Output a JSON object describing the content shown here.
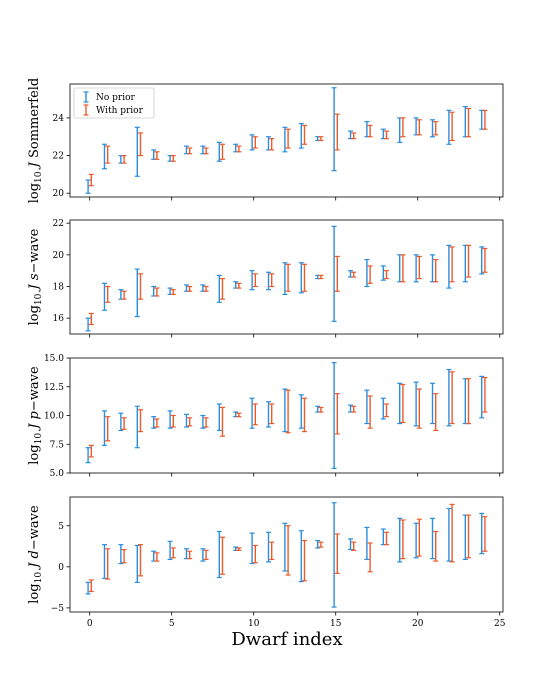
{
  "colors": {
    "no_prior": "#2a8fdd",
    "with_prior": "#ec5a2a"
  },
  "chart_data": [
    {
      "type": "errorbar",
      "ylabel": "log10 J Sommerfeld",
      "ylim": [
        19.8,
        25.8
      ],
      "yticks": [
        20,
        22,
        24
      ],
      "xlim": [
        -1.2,
        25.2
      ],
      "legend": {
        "placement": "top-left",
        "entries": [
          "No prior",
          "With prior"
        ]
      },
      "series": [
        {
          "name": "No prior",
          "intervals": [
            [
              20.0,
              20.7
            ],
            [
              21.3,
              22.6
            ],
            [
              21.6,
              22.0
            ],
            [
              20.9,
              23.5
            ],
            [
              21.8,
              22.3
            ],
            [
              21.7,
              22.0
            ],
            [
              22.1,
              22.5
            ],
            [
              22.1,
              22.5
            ],
            [
              21.7,
              22.7
            ],
            [
              22.2,
              22.6
            ],
            [
              22.3,
              23.1
            ],
            [
              22.3,
              23.0
            ],
            [
              22.2,
              23.5
            ],
            [
              22.4,
              23.7
            ],
            [
              22.8,
              23.0
            ],
            [
              21.2,
              25.6
            ],
            [
              22.9,
              23.3
            ],
            [
              23.0,
              23.8
            ],
            [
              22.9,
              23.4
            ],
            [
              22.7,
              24.0
            ],
            [
              23.1,
              24.0
            ],
            [
              23.0,
              23.9
            ],
            [
              22.6,
              24.4
            ],
            [
              23.0,
              24.6
            ],
            [
              23.4,
              24.4
            ]
          ]
        },
        {
          "name": "With prior",
          "intervals": [
            [
              20.4,
              21.0
            ],
            [
              21.6,
              22.5
            ],
            [
              21.6,
              22.0
            ],
            [
              22.0,
              23.2
            ],
            [
              21.8,
              22.2
            ],
            [
              21.7,
              22.0
            ],
            [
              22.1,
              22.4
            ],
            [
              22.1,
              22.4
            ],
            [
              21.8,
              22.6
            ],
            [
              22.2,
              22.5
            ],
            [
              22.4,
              23.0
            ],
            [
              22.3,
              22.9
            ],
            [
              22.4,
              23.4
            ],
            [
              22.6,
              23.6
            ],
            [
              22.8,
              23.0
            ],
            [
              22.3,
              24.2
            ],
            [
              22.9,
              23.2
            ],
            [
              23.0,
              23.6
            ],
            [
              22.9,
              23.3
            ],
            [
              23.0,
              24.0
            ],
            [
              23.1,
              23.9
            ],
            [
              23.1,
              23.8
            ],
            [
              22.8,
              24.3
            ],
            [
              23.0,
              24.5
            ],
            [
              23.4,
              24.4
            ]
          ]
        }
      ]
    },
    {
      "type": "errorbar",
      "ylabel": "log10 J s-wave",
      "ylim": [
        15.0,
        22.2
      ],
      "yticks": [
        16,
        18,
        20,
        22
      ],
      "xlim": [
        -1.2,
        25.2
      ],
      "series": [
        {
          "name": "No prior",
          "intervals": [
            [
              15.2,
              16.0
            ],
            [
              16.5,
              18.2
            ],
            [
              17.2,
              17.8
            ],
            [
              16.1,
              19.1
            ],
            [
              17.4,
              18.0
            ],
            [
              17.5,
              17.9
            ],
            [
              17.7,
              18.1
            ],
            [
              17.7,
              18.1
            ],
            [
              17.0,
              18.7
            ],
            [
              17.9,
              18.3
            ],
            [
              17.8,
              19.0
            ],
            [
              17.8,
              18.9
            ],
            [
              17.5,
              19.5
            ],
            [
              17.6,
              19.5
            ],
            [
              18.5,
              18.7
            ],
            [
              15.8,
              21.8
            ],
            [
              18.6,
              19.0
            ],
            [
              18.0,
              19.7
            ],
            [
              18.4,
              19.3
            ],
            [
              18.3,
              20.0
            ],
            [
              18.3,
              20.0
            ],
            [
              18.3,
              20.0
            ],
            [
              17.9,
              20.6
            ],
            [
              18.3,
              20.6
            ],
            [
              18.8,
              20.5
            ]
          ]
        },
        {
          "name": "With prior",
          "intervals": [
            [
              15.6,
              16.3
            ],
            [
              17.0,
              18.0
            ],
            [
              17.2,
              17.7
            ],
            [
              17.2,
              18.8
            ],
            [
              17.4,
              17.9
            ],
            [
              17.5,
              17.8
            ],
            [
              17.7,
              18.0
            ],
            [
              17.7,
              18.0
            ],
            [
              17.2,
              18.5
            ],
            [
              17.9,
              18.2
            ],
            [
              18.0,
              18.8
            ],
            [
              18.0,
              18.8
            ],
            [
              17.7,
              19.4
            ],
            [
              17.7,
              19.4
            ],
            [
              18.5,
              18.7
            ],
            [
              17.7,
              19.9
            ],
            [
              18.6,
              18.9
            ],
            [
              18.2,
              19.3
            ],
            [
              18.5,
              19.0
            ],
            [
              18.3,
              20.0
            ],
            [
              18.5,
              19.9
            ],
            [
              18.3,
              19.7
            ],
            [
              18.3,
              20.5
            ],
            [
              18.6,
              20.6
            ],
            [
              18.9,
              20.4
            ]
          ]
        }
      ]
    },
    {
      "type": "errorbar",
      "ylabel": "log10 J p-wave",
      "ylim": [
        5.0,
        15.0
      ],
      "yticks": [
        5.0,
        7.5,
        10.0,
        12.5,
        15.0
      ],
      "xlim": [
        -1.2,
        25.2
      ],
      "series": [
        {
          "name": "No prior",
          "intervals": [
            [
              5.9,
              7.2
            ],
            [
              7.4,
              10.4
            ],
            [
              8.7,
              10.2
            ],
            [
              7.2,
              10.8
            ],
            [
              8.9,
              9.9
            ],
            [
              8.9,
              10.4
            ],
            [
              9.0,
              10.1
            ],
            [
              8.9,
              10.0
            ],
            [
              8.7,
              11.0
            ],
            [
              9.9,
              10.3
            ],
            [
              8.9,
              11.5
            ],
            [
              9.0,
              11.2
            ],
            [
              8.6,
              12.3
            ],
            [
              8.9,
              11.8
            ],
            [
              10.3,
              10.8
            ],
            [
              5.4,
              14.6
            ],
            [
              10.3,
              10.9
            ],
            [
              9.3,
              12.2
            ],
            [
              9.7,
              11.5
            ],
            [
              9.3,
              12.8
            ],
            [
              9.1,
              12.9
            ],
            [
              9.3,
              12.8
            ],
            [
              9.1,
              14.0
            ],
            [
              9.3,
              13.2
            ],
            [
              9.8,
              13.4
            ]
          ]
        },
        {
          "name": "With prior",
          "intervals": [
            [
              6.4,
              7.4
            ],
            [
              7.8,
              9.9
            ],
            [
              8.8,
              9.8
            ],
            [
              8.6,
              10.5
            ],
            [
              9.0,
              9.7
            ],
            [
              9.0,
              10.0
            ],
            [
              9.1,
              9.8
            ],
            [
              9.0,
              9.8
            ],
            [
              8.2,
              10.7
            ],
            [
              9.9,
              10.2
            ],
            [
              9.2,
              11.0
            ],
            [
              9.3,
              11.0
            ],
            [
              8.5,
              12.2
            ],
            [
              8.6,
              11.5
            ],
            [
              10.3,
              10.7
            ],
            [
              8.4,
              11.9
            ],
            [
              10.3,
              10.8
            ],
            [
              8.9,
              11.7
            ],
            [
              9.9,
              11.0
            ],
            [
              9.4,
              12.7
            ],
            [
              8.9,
              12.3
            ],
            [
              8.7,
              11.9
            ],
            [
              9.3,
              13.8
            ],
            [
              9.3,
              13.2
            ],
            [
              10.3,
              13.3
            ]
          ]
        }
      ]
    },
    {
      "type": "errorbar",
      "ylabel": "log10 J d-wave",
      "ylim": [
        -5.5,
        8.5
      ],
      "yticks": [
        -5,
        0,
        5
      ],
      "xlim": [
        -1.2,
        25.2
      ],
      "series": [
        {
          "name": "No prior",
          "intervals": [
            [
              -3.3,
              -1.9
            ],
            [
              -1.4,
              2.7
            ],
            [
              0.4,
              2.7
            ],
            [
              -1.9,
              2.6
            ],
            [
              0.7,
              1.9
            ],
            [
              0.9,
              3.1
            ],
            [
              1.0,
              2.2
            ],
            [
              0.7,
              2.2
            ],
            [
              -1.3,
              4.3
            ],
            [
              2.0,
              2.4
            ],
            [
              0.4,
              4.1
            ],
            [
              0.6,
              4.2
            ],
            [
              -0.5,
              5.3
            ],
            [
              -1.8,
              4.4
            ],
            [
              2.3,
              3.2
            ],
            [
              -4.9,
              7.8
            ],
            [
              2.1,
              3.4
            ],
            [
              0.9,
              4.8
            ],
            [
              2.7,
              4.6
            ],
            [
              0.6,
              5.9
            ],
            [
              1.1,
              5.3
            ],
            [
              1.0,
              5.9
            ],
            [
              0.7,
              7.1
            ],
            [
              0.9,
              6.3
            ],
            [
              1.6,
              6.5
            ]
          ]
        },
        {
          "name": "With prior",
          "intervals": [
            [
              -3.0,
              -1.6
            ],
            [
              -1.5,
              2.2
            ],
            [
              0.5,
              2.1
            ],
            [
              -1.1,
              2.7
            ],
            [
              0.7,
              1.7
            ],
            [
              1.1,
              2.3
            ],
            [
              1.0,
              1.9
            ],
            [
              0.9,
              2.0
            ],
            [
              -0.9,
              3.6
            ],
            [
              2.0,
              2.3
            ],
            [
              0.5,
              2.6
            ],
            [
              0.9,
              3.0
            ],
            [
              -1.0,
              5.0
            ],
            [
              -1.7,
              3.2
            ],
            [
              2.4,
              3.0
            ],
            [
              -0.8,
              4.0
            ],
            [
              2.0,
              3.0
            ],
            [
              -0.6,
              2.9
            ],
            [
              2.7,
              4.2
            ],
            [
              1.0,
              5.7
            ],
            [
              1.3,
              5.8
            ],
            [
              0.7,
              4.3
            ],
            [
              0.6,
              7.6
            ],
            [
              1.1,
              6.3
            ],
            [
              1.9,
              6.1
            ]
          ]
        }
      ]
    }
  ],
  "xaxis": {
    "label": "Dwarf index",
    "ticks": [
      0,
      5,
      10,
      15,
      20,
      25
    ]
  }
}
